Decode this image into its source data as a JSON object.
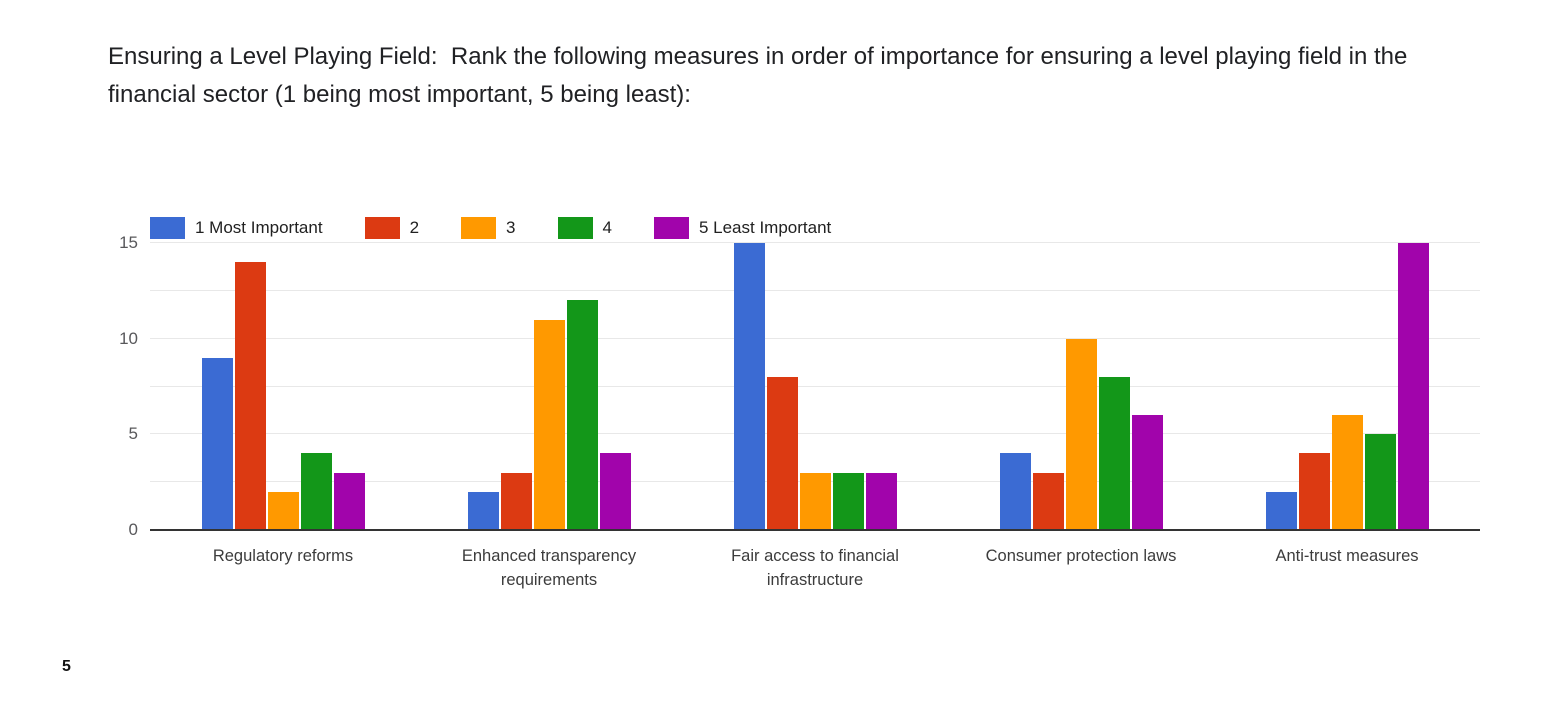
{
  "title": "Ensuring a Level Playing Field:  Rank the following measures in order of importance for ensuring a level playing field in the financial sector (1 being most important, 5 being least):",
  "page_number": "5",
  "colors": {
    "series_blue": "#3B6BD3",
    "series_red": "#DC3A12",
    "series_orange": "#FF9900",
    "series_green": "#139719",
    "series_purple": "#A104AB",
    "gridline": "#E8E8E8",
    "axis_line": "#333333",
    "title_text": "#202124",
    "tick_text": "#58585B"
  },
  "chart_data": {
    "type": "bar",
    "title": "Ensuring a Level Playing Field:  Rank the following measures in order of importance for ensuring a level playing field in the financial sector (1 being most important, 5 being least):",
    "categories": [
      "Regulatory reforms",
      "Enhanced transparency requirements",
      "Fair access to financial infrastructure",
      "Consumer protection laws",
      "Anti-trust measures"
    ],
    "series": [
      {
        "name": "1 Most Important",
        "color": "#3B6BD3",
        "values": [
          9,
          2,
          15,
          4,
          2
        ]
      },
      {
        "name": "2",
        "color": "#DC3A12",
        "values": [
          14,
          3,
          8,
          3,
          4
        ]
      },
      {
        "name": "3",
        "color": "#FF9900",
        "values": [
          2,
          11,
          3,
          10,
          6
        ]
      },
      {
        "name": "4",
        "color": "#139719",
        "values": [
          4,
          12,
          3,
          8,
          5
        ]
      },
      {
        "name": "5 Least Important",
        "color": "#A104AB",
        "values": [
          3,
          4,
          3,
          6,
          15
        ]
      }
    ],
    "xlabel": "",
    "ylabel": "",
    "ylim": [
      0,
      15
    ],
    "yticks": [
      0,
      5,
      10,
      15
    ],
    "gridline_step": 2.5,
    "grid": true,
    "legend_position": "top-left"
  }
}
